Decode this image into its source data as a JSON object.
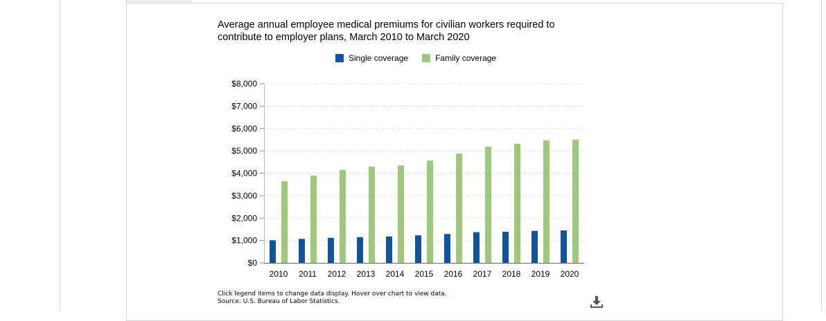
{
  "chart_data": {
    "type": "bar",
    "title": "Average annual employee medical premiums for civilian workers required to contribute to employer plans, March 2010 to March 2020",
    "categories": [
      "2010",
      "2011",
      "2012",
      "2013",
      "2014",
      "2015",
      "2016",
      "2017",
      "2018",
      "2019",
      "2020"
    ],
    "series": [
      {
        "name": "Single coverage",
        "color": "#0a56a4",
        "values": [
          1010,
          1070,
          1120,
          1150,
          1180,
          1230,
          1290,
          1370,
          1390,
          1430,
          1450
        ]
      },
      {
        "name": "Family coverage",
        "color": "#9fc87c",
        "values": [
          3650,
          3900,
          4150,
          4300,
          4350,
          4570,
          4880,
          5190,
          5320,
          5470,
          5500
        ]
      }
    ],
    "ylim": [
      0,
      8000
    ],
    "yticks": [
      0,
      1000,
      2000,
      3000,
      4000,
      5000,
      6000,
      7000,
      8000
    ],
    "ytick_labels": [
      "$0",
      "$1,000",
      "$2,000",
      "$3,000",
      "$4,000",
      "$5,000",
      "$6,000",
      "$7,000",
      "$8,000"
    ],
    "xlabel": "",
    "ylabel": "",
    "grid": true,
    "legend_position": "top-center"
  },
  "notes": {
    "instructions": "Click legend items to change data display. Hover over chart to view data.",
    "source": "Source: U.S. Bureau of Labor Statistics."
  },
  "icons": {
    "download": "download-icon"
  }
}
